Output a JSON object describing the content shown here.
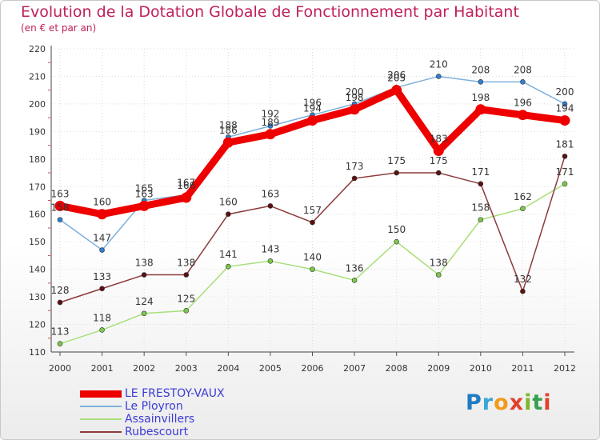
{
  "header": {
    "title": "Evolution de la Dotation Globale de Fonctionnement par Habitant",
    "subtitle": "(en € et par an)"
  },
  "logo": {
    "text": "Proxiti"
  },
  "chart_data": {
    "type": "line",
    "title": "Evolution de la Dotation Globale de Fonctionnement par Habitant",
    "subtitle": "(en € et par an)",
    "xlabel": "",
    "ylabel": "",
    "x": [
      "2000",
      "2001",
      "2002",
      "2003",
      "2004",
      "2005",
      "2006",
      "2007",
      "2008",
      "2009",
      "2010",
      "2011",
      "2012"
    ],
    "ylim": [
      110,
      220
    ],
    "ystep": 10,
    "yticks": [
      "110",
      "120",
      "130",
      "140",
      "150",
      "160",
      "170",
      "180",
      "190",
      "200",
      "210",
      "220"
    ],
    "grid": true,
    "legend_position": "bottom-left",
    "series": [
      {
        "name": "LE FRESTOY-VAUX",
        "values": [
          163,
          160,
          163,
          166,
          186,
          189,
          194,
          198,
          205,
          183,
          198,
          196,
          194
        ],
        "labels": [
          "163",
          "160",
          "163",
          "166",
          "186",
          "189",
          "194",
          "198",
          "205",
          "183",
          "198",
          "196",
          "194"
        ],
        "color": "#ee0000",
        "dot": "#ee0000",
        "style": "thick"
      },
      {
        "name": "Le Ployron",
        "values": [
          158,
          147,
          165,
          167,
          188,
          192,
          196,
          200,
          206,
          210,
          208,
          208,
          200
        ],
        "labels": [
          "158",
          "147",
          "165",
          "167",
          "188",
          "192",
          "196",
          "200",
          "206",
          "210",
          "208",
          "208",
          "200"
        ],
        "color": "#7fb0dc",
        "dot": "#2e7fd0",
        "style": "thin"
      },
      {
        "name": "Assainvillers",
        "values": [
          113,
          118,
          124,
          125,
          141,
          143,
          140,
          136,
          150,
          138,
          158,
          162,
          171
        ],
        "labels": [
          "113",
          "118",
          "124",
          "125",
          "141",
          "143",
          "140",
          "136",
          "150",
          "138",
          "158",
          "162",
          "171"
        ],
        "color": "#a8df7a",
        "dot": "#7cc84c",
        "style": "thin"
      },
      {
        "name": "Rubescourt",
        "values": [
          128,
          133,
          138,
          138,
          160,
          163,
          157,
          173,
          175,
          175,
          171,
          132,
          181
        ],
        "labels": [
          "128",
          "133",
          "138",
          "138",
          "160",
          "163",
          "157",
          "173",
          "175",
          "175",
          "171",
          "132",
          "181"
        ],
        "color": "#8c3a3a",
        "dot": "#5a1010",
        "style": "thin"
      }
    ]
  }
}
